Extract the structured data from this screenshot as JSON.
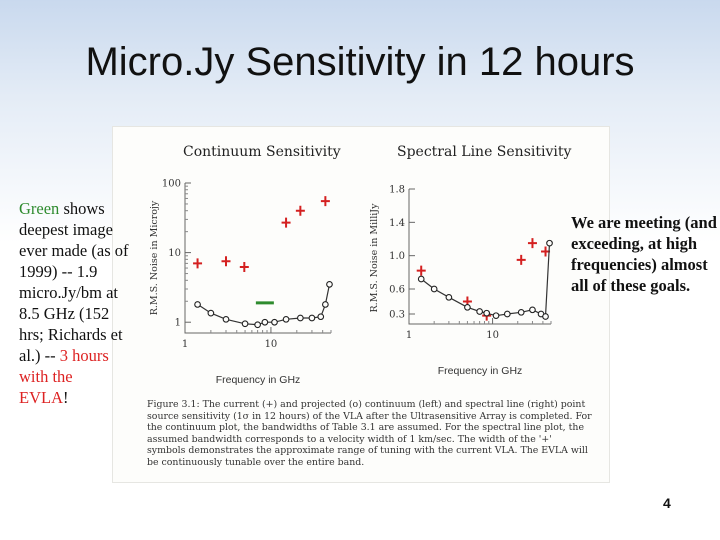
{
  "slide": {
    "title": "Micro.Jy Sensitivity in 12 hours",
    "left_text": {
      "green_word": "Green",
      "part1": " shows deepest image ever made (as of 1999) -- 1.9 micro.Jy/bm at 8.5 GHz (152 hrs; Richards et al.) -- ",
      "red_part1": "3 hours with the",
      "red_part2": "EVLA",
      "end": "!"
    },
    "right_text": "We are meeting (and exceeding, at high frequencies) almost all of these goals.",
    "page_number": "4"
  },
  "figure": {
    "caption": "Figure 3.1: The current (+) and projected (o) continuum (left) and spectral line (right) point source sensitivity (1σ in 12 hours) of the VLA after the Ultrasensitive Array is completed. For the continuum plot, the bandwidths of Table 3.1 are assumed. For the spectral line plot, the assumed bandwidth corresponds to a velocity width of 1 km/sec. The width of the '+' symbols demonstrates the approximate range of tuning with the current VLA. The EVLA will be continuously tunable over the entire band."
  },
  "colors": {
    "current": "#d42020",
    "projected": "#222222",
    "deepest": "#2e8b2e",
    "red_text": "#dd2222"
  },
  "chart_data": [
    {
      "type": "scatter",
      "title": "Continuum Sensitivity",
      "xlabel": "Frequency in GHz",
      "ylabel": "R.M.S. Noise in Microjy",
      "xscale": "log",
      "yscale": "log",
      "xlim": [
        1,
        50
      ],
      "ylim": [
        0.7,
        100
      ],
      "x_ticks": [
        1,
        10
      ],
      "x_tick_labels": [
        "1",
        "10"
      ],
      "y_ticks": [
        1,
        10,
        100
      ],
      "y_tick_labels": [
        "1",
        "10",
        "100"
      ],
      "series": [
        {
          "marker": "plus",
          "color": "#d42020",
          "x": [
            1.4,
            3.0,
            4.9,
            15,
            22,
            43
          ],
          "y": [
            7.0,
            7.5,
            6.2,
            27,
            40,
            55
          ]
        },
        {
          "marker": "circle",
          "line": true,
          "color": "#222222",
          "x": [
            1.4,
            2.0,
            3.0,
            5.0,
            7.0,
            8.5,
            11,
            15,
            22,
            30,
            38,
            43,
            48
          ],
          "y": [
            1.8,
            1.35,
            1.1,
            0.95,
            0.92,
            1.0,
            1.0,
            1.1,
            1.15,
            1.15,
            1.2,
            1.8,
            3.5
          ]
        },
        {
          "marker": "bar",
          "color": "#2e8b2e",
          "x": [
            8.5
          ],
          "y": [
            1.9
          ]
        }
      ]
    },
    {
      "type": "scatter",
      "title": "Spectral Line Sensitivity",
      "xlabel": "Frequency in GHz",
      "ylabel": "R.M.S. Noise in MilliJy",
      "xscale": "log",
      "xlim": [
        1,
        50
      ],
      "ylim": [
        0.18,
        1.8
      ],
      "x_ticks": [
        1,
        10
      ],
      "x_tick_labels": [
        "1",
        "10"
      ],
      "y_ticks": [
        0.3,
        0.6,
        1.0,
        1.4,
        1.8
      ],
      "y_tick_labels": [
        "0.3",
        "0.6",
        "1.0",
        "1.4",
        "1.8"
      ],
      "series": [
        {
          "marker": "plus",
          "color": "#d42020",
          "x": [
            1.4,
            5.0,
            8.5,
            22,
            30,
            43
          ],
          "y": [
            0.82,
            0.45,
            0.28,
            0.95,
            1.15,
            1.05
          ]
        },
        {
          "marker": "circle",
          "line": true,
          "color": "#222222",
          "x": [
            1.4,
            2.0,
            3.0,
            5.0,
            7.0,
            8.5,
            11,
            15,
            22,
            30,
            38,
            43,
            48
          ],
          "y": [
            0.72,
            0.6,
            0.5,
            0.38,
            0.33,
            0.31,
            0.28,
            0.3,
            0.32,
            0.35,
            0.3,
            0.27,
            1.15
          ]
        }
      ]
    }
  ]
}
